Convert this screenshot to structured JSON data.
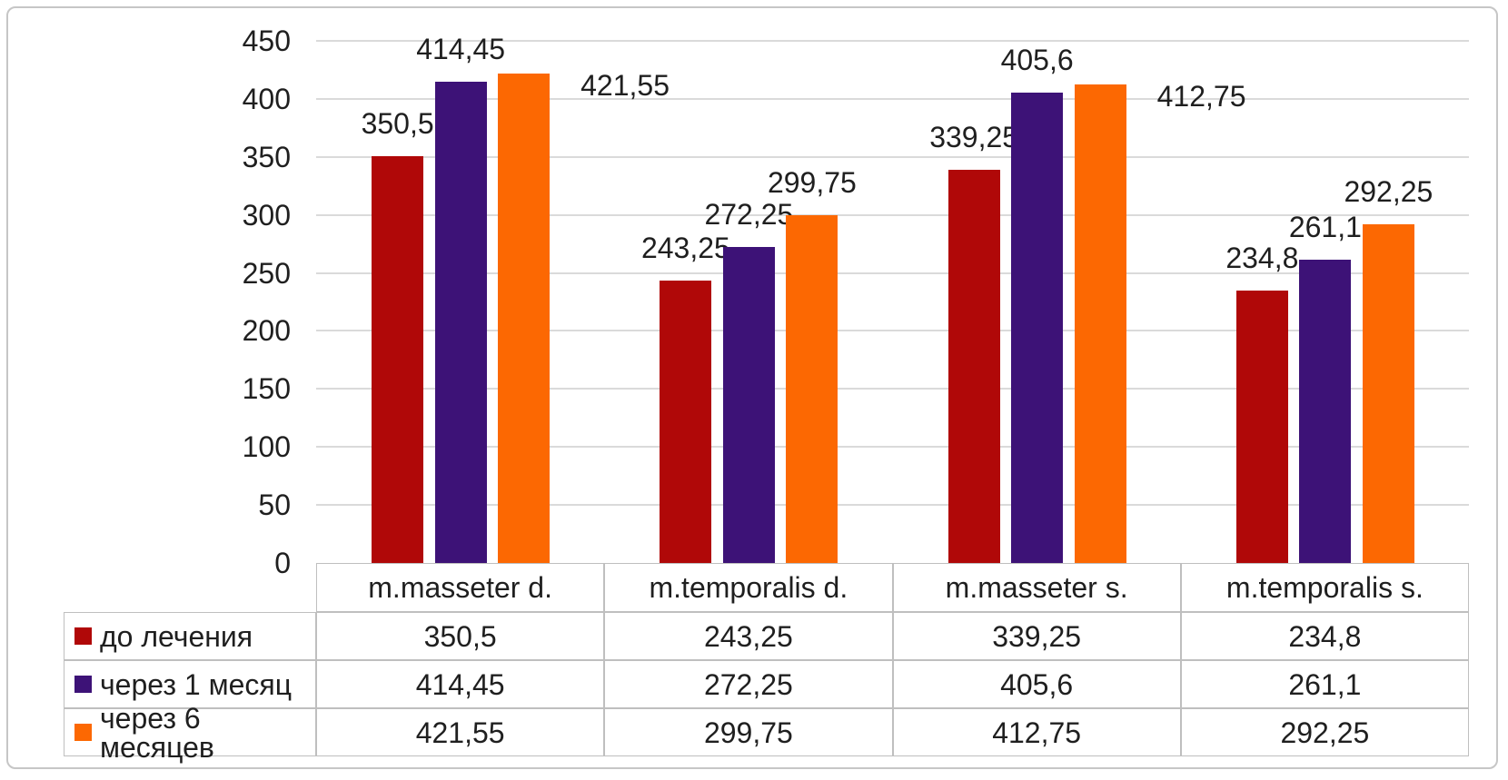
{
  "chart_data": {
    "type": "bar",
    "title": "",
    "xlabel": "",
    "ylabel": "",
    "categories": [
      "m.masseter d.",
      "m.temporalis d.",
      "m.masseter s.",
      "m.temporalis s."
    ],
    "series": [
      {
        "name": "до лечения",
        "color": "#b00808",
        "values": [
          350.5,
          243.25,
          339.25,
          234.8
        ],
        "labels": [
          "350,5",
          "243,25",
          "339,25",
          "234,8"
        ]
      },
      {
        "name": "через 1 месяц",
        "color": "#3d1277",
        "values": [
          414.45,
          272.25,
          405.6,
          261.1
        ],
        "labels": [
          "414,45",
          "272,25",
          "405,6",
          "261,1"
        ]
      },
      {
        "name": "через 6 месяцев",
        "color": "#fc6802",
        "values": [
          421.55,
          299.75,
          412.75,
          292.25
        ],
        "labels": [
          "421,55",
          "299,75",
          "412,75",
          "292,25"
        ]
      }
    ],
    "label_placement": [
      [
        "above",
        "above",
        "above",
        "above"
      ],
      [
        "above",
        "above",
        "above",
        "above"
      ],
      [
        "right",
        "above",
        "right",
        "above"
      ]
    ],
    "y_axis": {
      "min": 0,
      "max": 450,
      "step": 50,
      "tick_labels": [
        "450",
        "400",
        "350",
        "300",
        "250",
        "200",
        "150",
        "100",
        "50",
        "0"
      ]
    },
    "grid": true,
    "legend_position": "data-table-left-column",
    "decimal_separator": ","
  },
  "colors": {
    "series_red": "#b00808",
    "series_purple": "#3d1277",
    "series_orange": "#fc6802",
    "gridline": "#dadada",
    "table_border": "#bfbfbf",
    "text": "#1f1f1f",
    "outer_border": "#c6c6c6",
    "background": "#ffffff"
  }
}
